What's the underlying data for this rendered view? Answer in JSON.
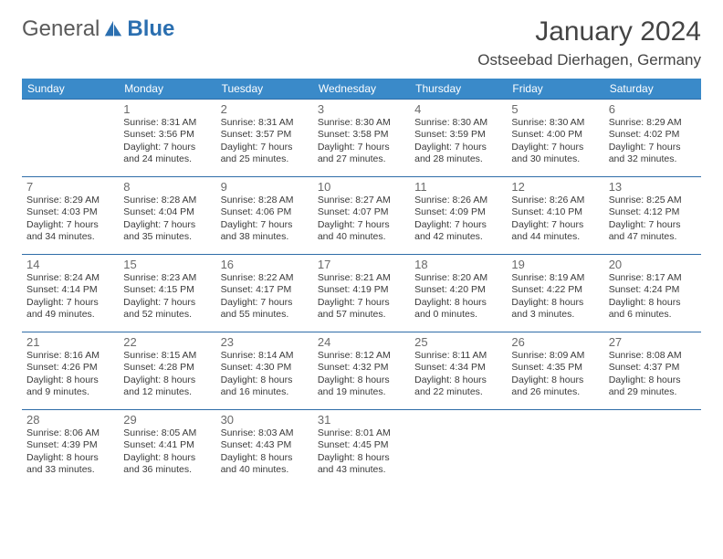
{
  "logo": {
    "general": "General",
    "blue": "Blue"
  },
  "title": "January 2024",
  "location": "Ostseebad Dierhagen, Germany",
  "colors": {
    "header_bg": "#3a8ac9",
    "header_text": "#ffffff",
    "row_border": "#2f6da8",
    "body_text": "#3a3a3a",
    "daynum_text": "#6a6a6a",
    "logo_blue": "#2b6fb0"
  },
  "weekdays": [
    "Sunday",
    "Monday",
    "Tuesday",
    "Wednesday",
    "Thursday",
    "Friday",
    "Saturday"
  ],
  "weeks": [
    [
      null,
      {
        "n": "1",
        "sr": "Sunrise: 8:31 AM",
        "ss": "Sunset: 3:56 PM",
        "d1": "Daylight: 7 hours",
        "d2": "and 24 minutes."
      },
      {
        "n": "2",
        "sr": "Sunrise: 8:31 AM",
        "ss": "Sunset: 3:57 PM",
        "d1": "Daylight: 7 hours",
        "d2": "and 25 minutes."
      },
      {
        "n": "3",
        "sr": "Sunrise: 8:30 AM",
        "ss": "Sunset: 3:58 PM",
        "d1": "Daylight: 7 hours",
        "d2": "and 27 minutes."
      },
      {
        "n": "4",
        "sr": "Sunrise: 8:30 AM",
        "ss": "Sunset: 3:59 PM",
        "d1": "Daylight: 7 hours",
        "d2": "and 28 minutes."
      },
      {
        "n": "5",
        "sr": "Sunrise: 8:30 AM",
        "ss": "Sunset: 4:00 PM",
        "d1": "Daylight: 7 hours",
        "d2": "and 30 minutes."
      },
      {
        "n": "6",
        "sr": "Sunrise: 8:29 AM",
        "ss": "Sunset: 4:02 PM",
        "d1": "Daylight: 7 hours",
        "d2": "and 32 minutes."
      }
    ],
    [
      {
        "n": "7",
        "sr": "Sunrise: 8:29 AM",
        "ss": "Sunset: 4:03 PM",
        "d1": "Daylight: 7 hours",
        "d2": "and 34 minutes."
      },
      {
        "n": "8",
        "sr": "Sunrise: 8:28 AM",
        "ss": "Sunset: 4:04 PM",
        "d1": "Daylight: 7 hours",
        "d2": "and 35 minutes."
      },
      {
        "n": "9",
        "sr": "Sunrise: 8:28 AM",
        "ss": "Sunset: 4:06 PM",
        "d1": "Daylight: 7 hours",
        "d2": "and 38 minutes."
      },
      {
        "n": "10",
        "sr": "Sunrise: 8:27 AM",
        "ss": "Sunset: 4:07 PM",
        "d1": "Daylight: 7 hours",
        "d2": "and 40 minutes."
      },
      {
        "n": "11",
        "sr": "Sunrise: 8:26 AM",
        "ss": "Sunset: 4:09 PM",
        "d1": "Daylight: 7 hours",
        "d2": "and 42 minutes."
      },
      {
        "n": "12",
        "sr": "Sunrise: 8:26 AM",
        "ss": "Sunset: 4:10 PM",
        "d1": "Daylight: 7 hours",
        "d2": "and 44 minutes."
      },
      {
        "n": "13",
        "sr": "Sunrise: 8:25 AM",
        "ss": "Sunset: 4:12 PM",
        "d1": "Daylight: 7 hours",
        "d2": "and 47 minutes."
      }
    ],
    [
      {
        "n": "14",
        "sr": "Sunrise: 8:24 AM",
        "ss": "Sunset: 4:14 PM",
        "d1": "Daylight: 7 hours",
        "d2": "and 49 minutes."
      },
      {
        "n": "15",
        "sr": "Sunrise: 8:23 AM",
        "ss": "Sunset: 4:15 PM",
        "d1": "Daylight: 7 hours",
        "d2": "and 52 minutes."
      },
      {
        "n": "16",
        "sr": "Sunrise: 8:22 AM",
        "ss": "Sunset: 4:17 PM",
        "d1": "Daylight: 7 hours",
        "d2": "and 55 minutes."
      },
      {
        "n": "17",
        "sr": "Sunrise: 8:21 AM",
        "ss": "Sunset: 4:19 PM",
        "d1": "Daylight: 7 hours",
        "d2": "and 57 minutes."
      },
      {
        "n": "18",
        "sr": "Sunrise: 8:20 AM",
        "ss": "Sunset: 4:20 PM",
        "d1": "Daylight: 8 hours",
        "d2": "and 0 minutes."
      },
      {
        "n": "19",
        "sr": "Sunrise: 8:19 AM",
        "ss": "Sunset: 4:22 PM",
        "d1": "Daylight: 8 hours",
        "d2": "and 3 minutes."
      },
      {
        "n": "20",
        "sr": "Sunrise: 8:17 AM",
        "ss": "Sunset: 4:24 PM",
        "d1": "Daylight: 8 hours",
        "d2": "and 6 minutes."
      }
    ],
    [
      {
        "n": "21",
        "sr": "Sunrise: 8:16 AM",
        "ss": "Sunset: 4:26 PM",
        "d1": "Daylight: 8 hours",
        "d2": "and 9 minutes."
      },
      {
        "n": "22",
        "sr": "Sunrise: 8:15 AM",
        "ss": "Sunset: 4:28 PM",
        "d1": "Daylight: 8 hours",
        "d2": "and 12 minutes."
      },
      {
        "n": "23",
        "sr": "Sunrise: 8:14 AM",
        "ss": "Sunset: 4:30 PM",
        "d1": "Daylight: 8 hours",
        "d2": "and 16 minutes."
      },
      {
        "n": "24",
        "sr": "Sunrise: 8:12 AM",
        "ss": "Sunset: 4:32 PM",
        "d1": "Daylight: 8 hours",
        "d2": "and 19 minutes."
      },
      {
        "n": "25",
        "sr": "Sunrise: 8:11 AM",
        "ss": "Sunset: 4:34 PM",
        "d1": "Daylight: 8 hours",
        "d2": "and 22 minutes."
      },
      {
        "n": "26",
        "sr": "Sunrise: 8:09 AM",
        "ss": "Sunset: 4:35 PM",
        "d1": "Daylight: 8 hours",
        "d2": "and 26 minutes."
      },
      {
        "n": "27",
        "sr": "Sunrise: 8:08 AM",
        "ss": "Sunset: 4:37 PM",
        "d1": "Daylight: 8 hours",
        "d2": "and 29 minutes."
      }
    ],
    [
      {
        "n": "28",
        "sr": "Sunrise: 8:06 AM",
        "ss": "Sunset: 4:39 PM",
        "d1": "Daylight: 8 hours",
        "d2": "and 33 minutes."
      },
      {
        "n": "29",
        "sr": "Sunrise: 8:05 AM",
        "ss": "Sunset: 4:41 PM",
        "d1": "Daylight: 8 hours",
        "d2": "and 36 minutes."
      },
      {
        "n": "30",
        "sr": "Sunrise: 8:03 AM",
        "ss": "Sunset: 4:43 PM",
        "d1": "Daylight: 8 hours",
        "d2": "and 40 minutes."
      },
      {
        "n": "31",
        "sr": "Sunrise: 8:01 AM",
        "ss": "Sunset: 4:45 PM",
        "d1": "Daylight: 8 hours",
        "d2": "and 43 minutes."
      },
      null,
      null,
      null
    ]
  ]
}
